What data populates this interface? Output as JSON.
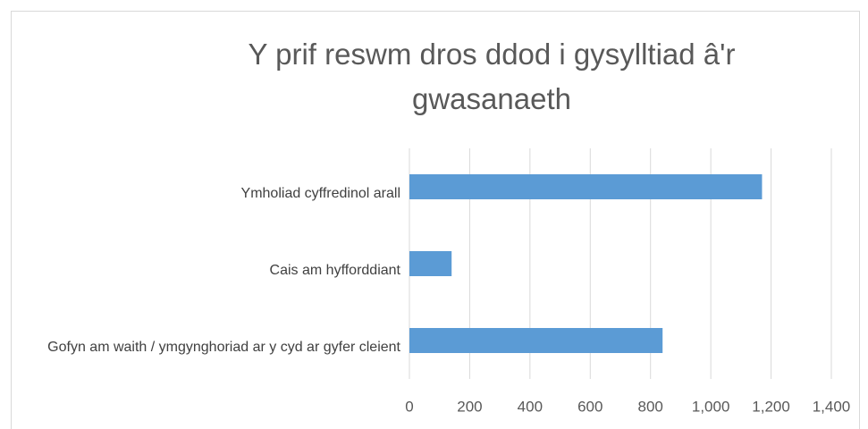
{
  "chart_data": {
    "type": "bar",
    "orientation": "horizontal",
    "title": "Y prif reswm dros ddod i gysylltiad â'r gwasanaeth",
    "categories": [
      "Ymholiad cyffredinol arall",
      "Cais am hyfforddiant",
      "Gofyn am waith / ymgynghoriad ar y cyd ar gyfer cleient"
    ],
    "values": [
      1170,
      140,
      840
    ],
    "color": "#5b9bd5",
    "xlim": [
      0,
      1400
    ],
    "xticks": [
      0,
      200,
      400,
      600,
      800,
      {
        "value": 1000,
        "label": "1,000"
      },
      {
        "value": 1200,
        "label": "1,200"
      },
      {
        "value": 1400,
        "label": "1,400"
      }
    ],
    "grid": true
  }
}
